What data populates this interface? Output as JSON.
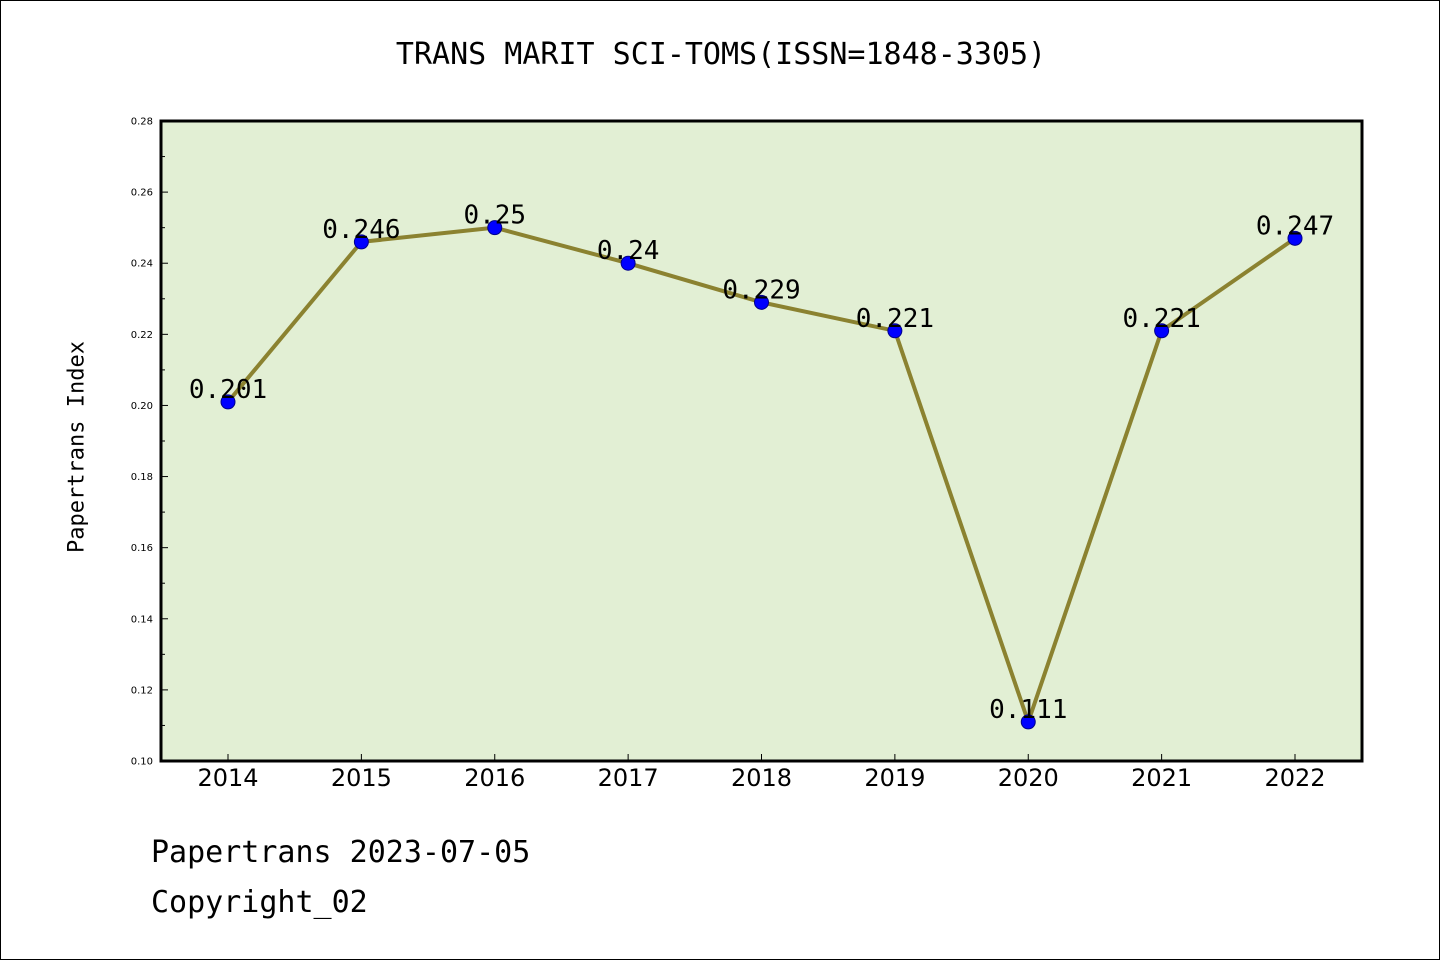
{
  "chart_data": {
    "type": "line",
    "title": "TRANS MARIT SCI-TOMS(ISSN=1848-3305)",
    "xlabel": "",
    "ylabel": "Papertrans Index",
    "categories": [
      "2014",
      "2015",
      "2016",
      "2017",
      "2018",
      "2019",
      "2020",
      "2021",
      "2022"
    ],
    "series": [
      {
        "values": [
          0.201,
          0.246,
          0.25,
          0.24,
          0.229,
          0.221,
          0.111,
          0.221,
          0.247
        ],
        "data_labels": [
          "0.201",
          "0.246",
          "0.25",
          "0.24",
          "0.229",
          "0.221",
          "0.111",
          "0.221",
          "0.247"
        ]
      }
    ],
    "ylim": [
      0.1,
      0.28
    ],
    "yticks": [
      "0.10",
      "0.12",
      "0.14",
      "0.16",
      "0.18",
      "0.20",
      "0.22",
      "0.24",
      "0.26",
      "0.28"
    ],
    "grid": false,
    "colors": {
      "plot_background": "#e2efd4",
      "line": "#8b8230",
      "marker": "#0000ff",
      "axes": "#000000"
    }
  },
  "footer": {
    "date": "Papertrans 2023-07-05",
    "copyright": "Copyright_02"
  }
}
